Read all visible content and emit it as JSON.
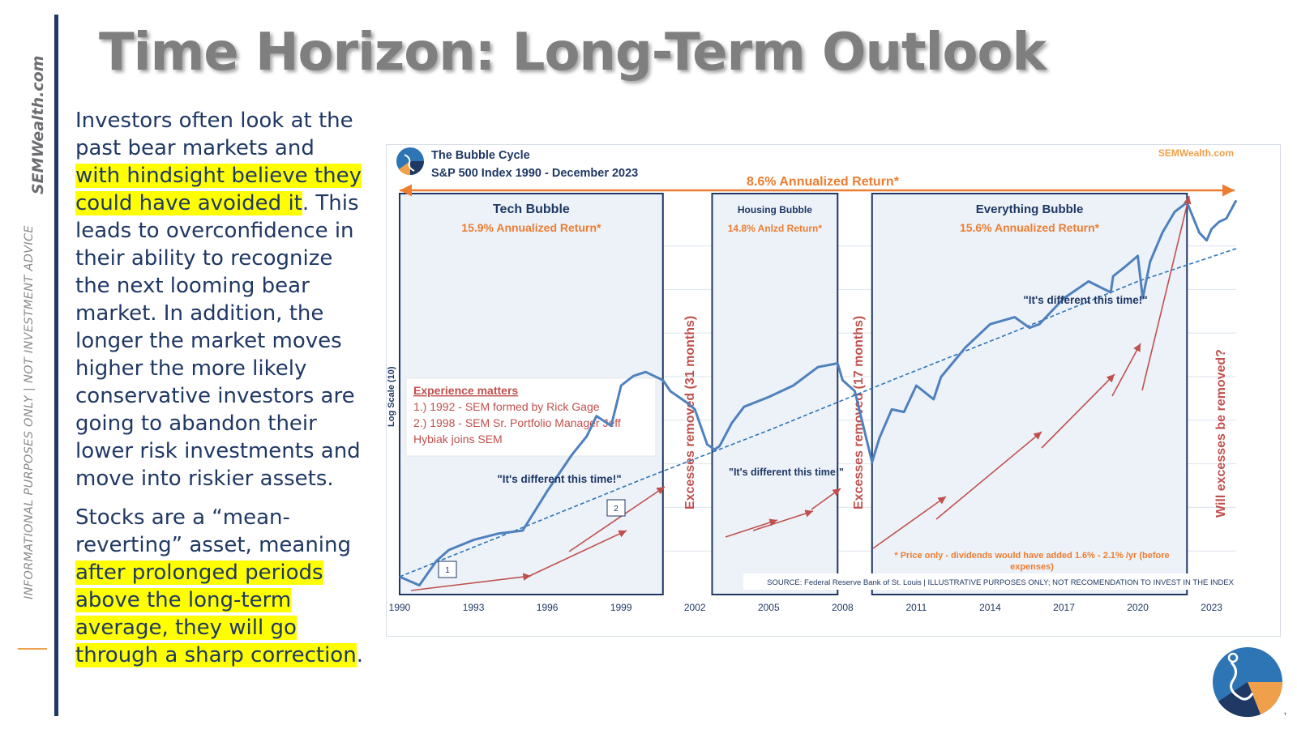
{
  "brand": {
    "name": "SEMWealth.com",
    "disclaimer": "INFORMATIONAL PURPOSES ONLY | NOT INVESTMENT ADVICE",
    "tm": "™"
  },
  "title": "Time Horizon: Long-Term Outlook",
  "body": {
    "p1_a": "Investors often look at the past bear markets and ",
    "p1_hl": "with hindsight believe they could have avoided it",
    "p1_b": ". This leads to overconfidence in their ability to recognize the next looming bear market. In addition, the longer the market moves higher the more likely conservative investors are going to abandon their lower risk investments and move into riskier assets.",
    "p2_a": "Stocks are a “mean-reverting” asset, meaning ",
    "p2_hl": "after prolonged periods above the long-term average, they will go through a sharp correction",
    "p2_b": "."
  },
  "colors": {
    "navy": "#1f3864",
    "orange": "#ed7d31",
    "red": "#c0504d",
    "line": "#4f81bd",
    "highlight": "#ffff00",
    "box_fill": "#edf2f9"
  },
  "chart_data": {
    "type": "line",
    "title": "The Bubble Cycle",
    "subtitle": "S&P 500 Index 1990 - December 2023",
    "watermark": "SEMWealth.com",
    "ylabel": "Log Scale (10)",
    "y_scale": "log",
    "ylim": [
      300,
      5000
    ],
    "xlim": [
      1990,
      2024
    ],
    "x_ticks": [
      "1990",
      "1993",
      "1996",
      "1999",
      "2002",
      "2005",
      "2008",
      "2011",
      "2014",
      "2017",
      "2020",
      "2023"
    ],
    "overall_return": "8.6% Annualized Return*",
    "series": [
      {
        "name": "S&P 500 Index",
        "x": [
          1990,
          1990.8,
          1991.5,
          1992,
          1993,
          1994,
          1995,
          1996,
          1997,
          1997.6,
          1998,
          1998.6,
          1999,
          1999.5,
          2000,
          2000.7,
          2001,
          2001.7,
          2002,
          2002.5,
          2002.8,
          2003,
          2003.5,
          2004,
          2005,
          2006,
          2007,
          2007.8,
          2008,
          2008.5,
          2009.2,
          2009.5,
          2010,
          2010.5,
          2011,
          2011.7,
          2012,
          2013,
          2014,
          2015,
          2015.6,
          2016,
          2017,
          2018,
          2018.9,
          2019,
          2019.5,
          2020,
          2020.2,
          2020.5,
          2021,
          2021.5,
          2022,
          2022.5,
          2022.8,
          2023,
          2023.3,
          2023.6,
          2024
        ],
        "values": [
          340,
          320,
          380,
          410,
          440,
          460,
          470,
          620,
          800,
          910,
          1050,
          980,
          1300,
          1390,
          1430,
          1350,
          1250,
          1150,
          1100,
          860,
          830,
          850,
          1000,
          1120,
          1200,
          1300,
          1480,
          1520,
          1350,
          1250,
          760,
          900,
          1100,
          1080,
          1300,
          1180,
          1380,
          1700,
          2000,
          2100,
          1950,
          2000,
          2400,
          2700,
          2500,
          2800,
          3000,
          3230,
          2400,
          3100,
          3800,
          4400,
          4700,
          3800,
          3600,
          3900,
          4100,
          4200,
          4770
        ]
      },
      {
        "name": "Long-term trend",
        "x": [
          1990,
          1995,
          2000,
          2005,
          2010,
          2015,
          2020,
          2024
        ],
        "values": [
          340,
          480,
          680,
          950,
          1350,
          1900,
          2700,
          3400
        ]
      }
    ],
    "periods": [
      {
        "name": "Tech Bubble",
        "return": "15.9% Annualized Return*",
        "start": 1990,
        "end": 2000.7,
        "quote": "\"It's different this time!\""
      },
      {
        "name": "Housing Bubble",
        "return": "14.8% Anlzd Return*",
        "start": 2002.7,
        "end": 2007.8,
        "quote": "\"It's different this time!\""
      },
      {
        "name": "Everything Bubble",
        "return": "15.6% Annualized Return*",
        "start": 2009.2,
        "end": 2022.0,
        "quote": "\"It's different this time!\""
      }
    ],
    "vertical_labels": [
      "Excesses removed (31 months)",
      "Excesses removed (17 months)",
      "Will excesses be removed?"
    ],
    "experience": {
      "heading": "Experience matters",
      "line1": "1.) 1992 - SEM formed by Rick Gage",
      "line2": "2.) 1998 - SEM Sr. Portfolio Manager Jeff",
      "line3": "Hybiak joins SEM",
      "marker1": "1",
      "marker2": "2"
    },
    "note_line1": "* Price only - dividends would have added 1.6% - 2.1% /yr (before",
    "note_line2": "expenses)",
    "source": "SOURCE: Federal Reserve Bank of St. Louis | ILLUSTRATIVE PURPOSES ONLY; NOT RECOMENDATION TO INVEST IN THE INDEX"
  }
}
